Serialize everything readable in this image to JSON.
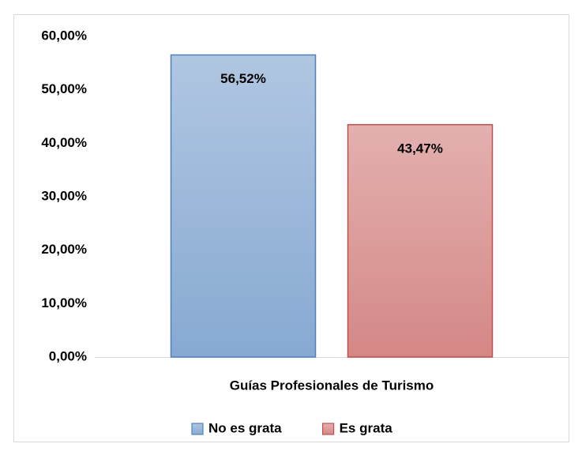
{
  "chart_data": {
    "type": "bar",
    "categories": [
      "Guías Profesionales de Turismo"
    ],
    "series": [
      {
        "name": "No es grata",
        "color": "#4f81bd",
        "values": [
          56.52
        ],
        "value_labels": [
          "56,52%"
        ]
      },
      {
        "name": "Es grata",
        "color": "#c0504d",
        "values": [
          43.47
        ],
        "value_labels": [
          "43,47%"
        ]
      }
    ],
    "ylim": [
      0,
      60
    ],
    "yticks": [
      {
        "value": 0,
        "label": "0,00%"
      },
      {
        "value": 10,
        "label": "10,00%"
      },
      {
        "value": 20,
        "label": "20,00%"
      },
      {
        "value": 30,
        "label": "30,00%"
      },
      {
        "value": 40,
        "label": "40,00%"
      },
      {
        "value": 50,
        "label": "50,00%"
      },
      {
        "value": 60,
        "label": "60,00%"
      }
    ],
    "grid": false,
    "legend": "bottom"
  }
}
